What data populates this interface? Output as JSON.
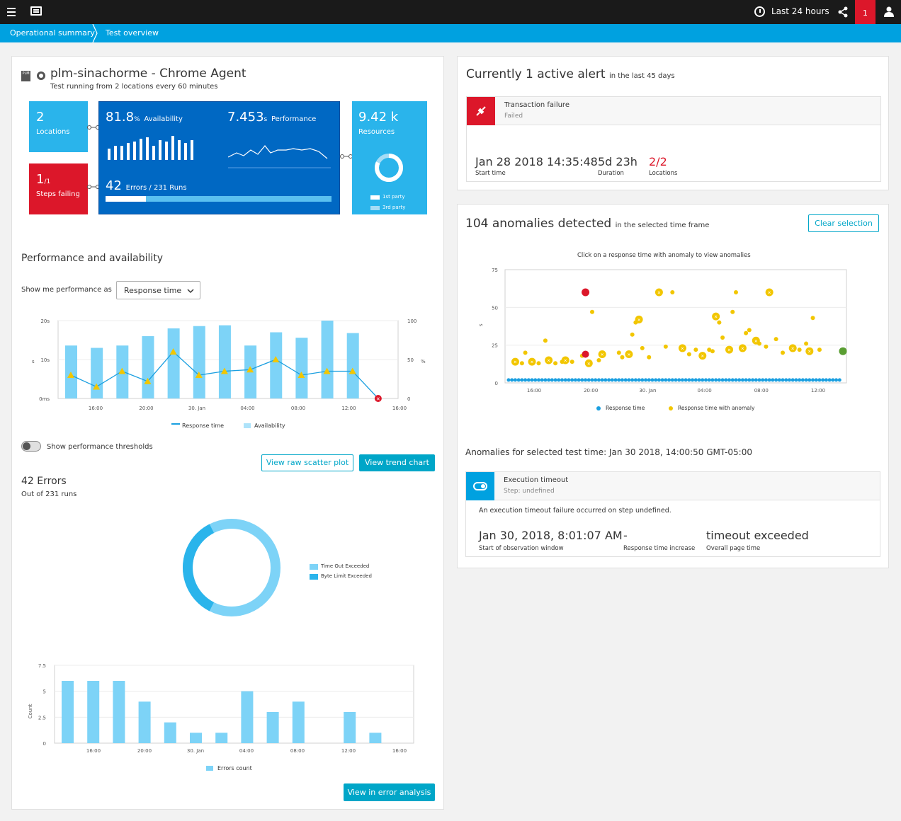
{
  "topbar": {
    "time_range": "Last 24 hours",
    "alert_count": "1"
  },
  "breadcrumb": [
    "Operational summary",
    "Test overview"
  ],
  "test": {
    "title": "plm-sinachorme - Chrome Agent",
    "subtitle": "Test running from 2 locations every 60 minutes",
    "logo_text": "PLM",
    "locations_value": "2",
    "locations_label": "Locations",
    "steps_value": "1",
    "steps_total": "/1",
    "steps_label": "Steps failing",
    "availability_value": "81.8",
    "availability_unit": "%",
    "availability_label": "Availability",
    "performance_value": "7.453",
    "performance_unit": "s",
    "performance_label": "Performance",
    "errors_value": "42",
    "errors_label": "Errors / 231 Runs",
    "errors_progress": 0.18,
    "resources_value": "9.42 k",
    "resources_label": "Resources",
    "resources_legend": [
      "1st party",
      "3rd party"
    ],
    "resources_first_party_fraction": 0.82
  },
  "perf": {
    "section_title": "Performance and availability",
    "show_label": "Show me performance as",
    "select_value": "Response time",
    "legend_response": "Response time",
    "legend_availability": "Availability",
    "threshold_label": "Show performance thresholds",
    "btn_scatter": "View raw scatter plot",
    "btn_trend": "View trend chart"
  },
  "errors": {
    "title": "42 Errors",
    "subtitle": "Out of 231 runs",
    "legend": [
      "Time Out Exceeded",
      "Byte Limit Exceeded"
    ],
    "btn_error_analysis": "View in error analysis",
    "legend_count": "Errors count"
  },
  "alert": {
    "title": "Currently 1 active alert",
    "title_suffix": "in the last 45 days",
    "name": "Transaction failure",
    "status": "Failed",
    "start_value": "Jan 28 2018 14:35:48",
    "start_label": "Start time",
    "duration_value": "5d 23h",
    "duration_label": "Duration",
    "locations_value": "2/2",
    "locations_label": "Locations"
  },
  "anomalies": {
    "title": "104 anomalies detected",
    "title_suffix": "in the selected time frame",
    "clear_button": "Clear selection",
    "chart_caption": "Click on a response time with anomaly to view anomalies",
    "legend_normal": "Response time",
    "legend_anomaly": "Response time with anomaly",
    "selected_title": "Anomalies for selected test time: Jan 30 2018, 14:00:50 GMT-05:00",
    "item_title": "Execution timeout",
    "item_step": "Step: undefined",
    "item_desc": "An execution timeout failure occurred on step undefined.",
    "obs_value": "Jan 30, 2018, 8:01:07 AM",
    "obs_label": "Start of observation window",
    "increase_value": "-",
    "increase_label": "Response time increase",
    "overall_value": "timeout exceeded",
    "overall_label": "Overall page time"
  },
  "colors": {
    "accent": "#00a1e0",
    "tile_blue": "#0068c3",
    "tile_light": "#2ab4eb",
    "red": "#dc172a",
    "teal": "#00a6c8",
    "bar": "#7dd3f7",
    "anomaly": "#f2c600"
  },
  "chart_data": [
    {
      "type": "bar",
      "title": "Performance and availability",
      "x_ticks": [
        "16:00",
        "20:00",
        "30. Jan",
        "04:00",
        "08:00",
        "12:00",
        "16:00"
      ],
      "y_left_ticks": [
        "0ms",
        "10s",
        "20s"
      ],
      "y_left_label": "s",
      "y_right_ticks": [
        "0",
        "50",
        "100"
      ],
      "y_right_label": "%",
      "ylim": [
        0,
        100
      ],
      "series": [
        {
          "name": "Availability",
          "type": "bar",
          "values": [
            68,
            65,
            68,
            80,
            90,
            93,
            94,
            68,
            85,
            78,
            100,
            84
          ]
        },
        {
          "name": "Response time",
          "type": "line",
          "values": [
            30,
            15,
            35,
            22,
            60,
            30,
            35,
            37,
            50,
            30,
            35,
            35,
            0
          ]
        }
      ]
    },
    {
      "type": "pie",
      "title": "42 Errors",
      "labels": [
        "Time Out Exceeded",
        "Byte Limit Exceeded"
      ],
      "values": [
        0.65,
        0.35
      ]
    },
    {
      "type": "bar",
      "x_ticks": [
        "16:00",
        "20:00",
        "30. Jan",
        "04:00",
        "08:00",
        "12:00",
        "16:00"
      ],
      "y_ticks": [
        "0",
        "2.5",
        "5",
        "7.5"
      ],
      "ylabel": "Count",
      "ylim": [
        0,
        7.5
      ],
      "series": [
        {
          "name": "Errors count",
          "values": [
            6,
            6,
            6,
            4,
            2,
            1,
            1,
            5,
            3,
            4,
            0,
            3,
            1
          ]
        }
      ]
    },
    {
      "type": "scatter",
      "title": "Click on a response time with anomaly to view anomalies",
      "x_ticks": [
        "16:00",
        "20:00",
        "30. Jan",
        "04:00",
        "08:00",
        "12:00"
      ],
      "y_ticks": [
        "0",
        "25",
        "50",
        "75"
      ],
      "ylabel": "s",
      "ylim": [
        0,
        75
      ],
      "series": [
        {
          "name": "Response time",
          "values": [
            [
              0.0,
              1
            ],
            [
              0.01,
              1
            ],
            [
              0.02,
              1
            ],
            [
              0.03,
              1
            ],
            [
              0.04,
              1
            ],
            [
              0.05,
              1
            ],
            [
              0.06,
              1
            ],
            [
              0.07,
              1
            ],
            [
              0.08,
              1
            ],
            [
              0.09,
              1
            ],
            [
              0.1,
              1
            ],
            [
              0.11,
              1
            ],
            [
              0.12,
              1
            ],
            [
              0.13,
              1
            ],
            [
              0.14,
              1
            ],
            [
              0.15,
              1
            ],
            [
              0.16,
              1
            ],
            [
              0.17,
              1
            ],
            [
              0.18,
              1
            ],
            [
              0.19,
              1
            ],
            [
              0.2,
              1
            ],
            [
              0.21,
              1
            ],
            [
              0.22,
              1
            ],
            [
              0.23,
              1
            ],
            [
              0.24,
              1
            ],
            [
              0.25,
              1
            ],
            [
              0.26,
              1
            ],
            [
              0.27,
              1
            ],
            [
              0.28,
              1
            ],
            [
              0.29,
              1
            ],
            [
              0.3,
              1
            ],
            [
              0.31,
              1
            ],
            [
              0.32,
              1
            ],
            [
              0.33,
              1
            ],
            [
              0.34,
              1
            ],
            [
              0.35,
              1
            ],
            [
              0.36,
              1
            ],
            [
              0.37,
              1
            ],
            [
              0.38,
              1
            ],
            [
              0.39,
              1
            ],
            [
              0.4,
              1
            ],
            [
              0.41,
              1
            ],
            [
              0.42,
              1
            ],
            [
              0.43,
              1
            ],
            [
              0.44,
              1
            ],
            [
              0.45,
              1
            ],
            [
              0.46,
              1
            ],
            [
              0.47,
              1
            ],
            [
              0.48,
              1
            ],
            [
              0.49,
              1
            ],
            [
              0.5,
              1
            ],
            [
              0.51,
              1
            ],
            [
              0.52,
              1
            ],
            [
              0.53,
              1
            ],
            [
              0.54,
              1
            ],
            [
              0.55,
              1
            ],
            [
              0.56,
              1
            ],
            [
              0.57,
              1
            ],
            [
              0.58,
              1
            ],
            [
              0.59,
              1
            ],
            [
              0.6,
              1
            ],
            [
              0.61,
              1
            ],
            [
              0.62,
              1
            ],
            [
              0.63,
              1
            ],
            [
              0.64,
              1
            ],
            [
              0.65,
              1
            ],
            [
              0.66,
              1
            ],
            [
              0.67,
              1
            ],
            [
              0.68,
              1
            ],
            [
              0.69,
              1
            ],
            [
              0.7,
              1
            ],
            [
              0.71,
              1
            ],
            [
              0.72,
              1
            ],
            [
              0.73,
              1
            ],
            [
              0.74,
              1
            ],
            [
              0.75,
              1
            ],
            [
              0.76,
              1
            ],
            [
              0.77,
              1
            ],
            [
              0.78,
              1
            ],
            [
              0.79,
              1
            ],
            [
              0.8,
              1
            ],
            [
              0.81,
              1
            ],
            [
              0.82,
              1
            ],
            [
              0.83,
              1
            ],
            [
              0.84,
              1
            ],
            [
              0.85,
              1
            ],
            [
              0.86,
              1
            ],
            [
              0.87,
              1
            ],
            [
              0.88,
              1
            ],
            [
              0.89,
              1
            ],
            [
              0.9,
              1
            ],
            [
              0.91,
              1
            ],
            [
              0.92,
              1
            ],
            [
              0.93,
              1
            ],
            [
              0.94,
              1
            ],
            [
              0.95,
              1
            ],
            [
              0.96,
              1
            ],
            [
              0.97,
              1
            ],
            [
              0.98,
              1
            ],
            [
              0.99,
              1
            ]
          ]
        },
        {
          "name": "Response time with anomaly",
          "values": [
            [
              0.02,
              14
            ],
            [
              0.04,
              13
            ],
            [
              0.05,
              20
            ],
            [
              0.07,
              14
            ],
            [
              0.09,
              13
            ],
            [
              0.11,
              28
            ],
            [
              0.12,
              15
            ],
            [
              0.14,
              13
            ],
            [
              0.16,
              14
            ],
            [
              0.17,
              15
            ],
            [
              0.19,
              14
            ],
            [
              0.22,
              18
            ],
            [
              0.24,
              13
            ],
            [
              0.25,
              47
            ],
            [
              0.27,
              15
            ],
            [
              0.28,
              19
            ],
            [
              0.33,
              20
            ],
            [
              0.34,
              17
            ],
            [
              0.36,
              19
            ],
            [
              0.37,
              32
            ],
            [
              0.38,
              40
            ],
            [
              0.39,
              42
            ],
            [
              0.4,
              23
            ],
            [
              0.42,
              17
            ],
            [
              0.45,
              60
            ],
            [
              0.47,
              24
            ],
            [
              0.49,
              60
            ],
            [
              0.52,
              23
            ],
            [
              0.54,
              19
            ],
            [
              0.56,
              22
            ],
            [
              0.58,
              18
            ],
            [
              0.6,
              22
            ],
            [
              0.61,
              21
            ],
            [
              0.62,
              44
            ],
            [
              0.63,
              40
            ],
            [
              0.64,
              30
            ],
            [
              0.66,
              22
            ],
            [
              0.67,
              47
            ],
            [
              0.68,
              60
            ],
            [
              0.7,
              23
            ],
            [
              0.71,
              33
            ],
            [
              0.72,
              35
            ],
            [
              0.74,
              28
            ],
            [
              0.75,
              26
            ],
            [
              0.77,
              24
            ],
            [
              0.78,
              60
            ],
            [
              0.8,
              29
            ],
            [
              0.82,
              20
            ],
            [
              0.85,
              23
            ],
            [
              0.87,
              22
            ],
            [
              0.89,
              26
            ],
            [
              0.9,
              21
            ],
            [
              0.91,
              43
            ],
            [
              0.93,
              22
            ]
          ]
        }
      ]
    }
  ]
}
